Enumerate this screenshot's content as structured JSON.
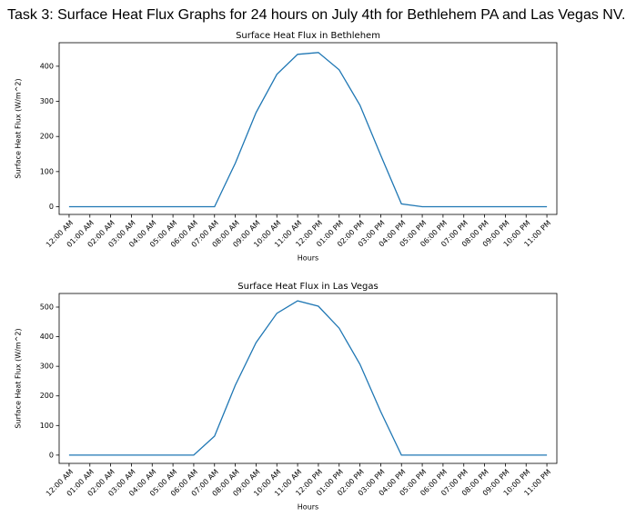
{
  "header": {
    "title": "Task 3: Surface Heat Flux Graphs for 24 hours on July 4th for Bethlehem PA and Las Vegas NV."
  },
  "chart_data": [
    {
      "type": "line",
      "title": "Surface Heat Flux in Bethlehem",
      "x_label": "Hours",
      "y_label": "Surface Heat Flux (W/m^2)",
      "categories": [
        "12:00 AM",
        "01:00 AM",
        "02:00 AM",
        "03:00 AM",
        "04:00 AM",
        "05:00 AM",
        "06:00 AM",
        "07:00 AM",
        "08:00 AM",
        "09:00 AM",
        "10:00 AM",
        "11:00 AM",
        "12:00 PM",
        "01:00 PM",
        "02:00 PM",
        "03:00 PM",
        "04:00 PM",
        "05:00 PM",
        "06:00 PM",
        "07:00 PM",
        "08:00 PM",
        "09:00 PM",
        "10:00 PM",
        "11:00 PM"
      ],
      "series": [
        {
          "color": "#1f77b4",
          "values": [
            0,
            0,
            0,
            0,
            0,
            0,
            0,
            0,
            124,
            268,
            377,
            434,
            439,
            390,
            289,
            147,
            8,
            0,
            0,
            0,
            0,
            0,
            0,
            0
          ]
        }
      ],
      "ylim": [
        -22,
        467
      ],
      "yticks": [
        0,
        100,
        200,
        300,
        400
      ]
    },
    {
      "type": "line",
      "title": "Surface Heat Flux in Las Vegas",
      "x_label": "Hours",
      "y_label": "Surface Heat Flux (W/m^2)",
      "categories": [
        "12:00 AM",
        "01:00 AM",
        "02:00 AM",
        "03:00 AM",
        "04:00 AM",
        "05:00 AM",
        "06:00 AM",
        "07:00 AM",
        "08:00 AM",
        "09:00 AM",
        "10:00 AM",
        "11:00 AM",
        "12:00 PM",
        "01:00 PM",
        "02:00 PM",
        "03:00 PM",
        "04:00 PM",
        "05:00 PM",
        "06:00 PM",
        "07:00 PM",
        "08:00 PM",
        "09:00 PM",
        "10:00 PM",
        "11:00 PM"
      ],
      "series": [
        {
          "color": "#1f77b4",
          "values": [
            0,
            0,
            0,
            0,
            0,
            0,
            0,
            64,
            236,
            380,
            479,
            521,
            503,
            429,
            307,
            147,
            0,
            0,
            0,
            0,
            0,
            0,
            0,
            0
          ]
        }
      ],
      "ylim": [
        -28,
        546
      ],
      "yticks": [
        0,
        100,
        200,
        300,
        400,
        500
      ]
    }
  ]
}
